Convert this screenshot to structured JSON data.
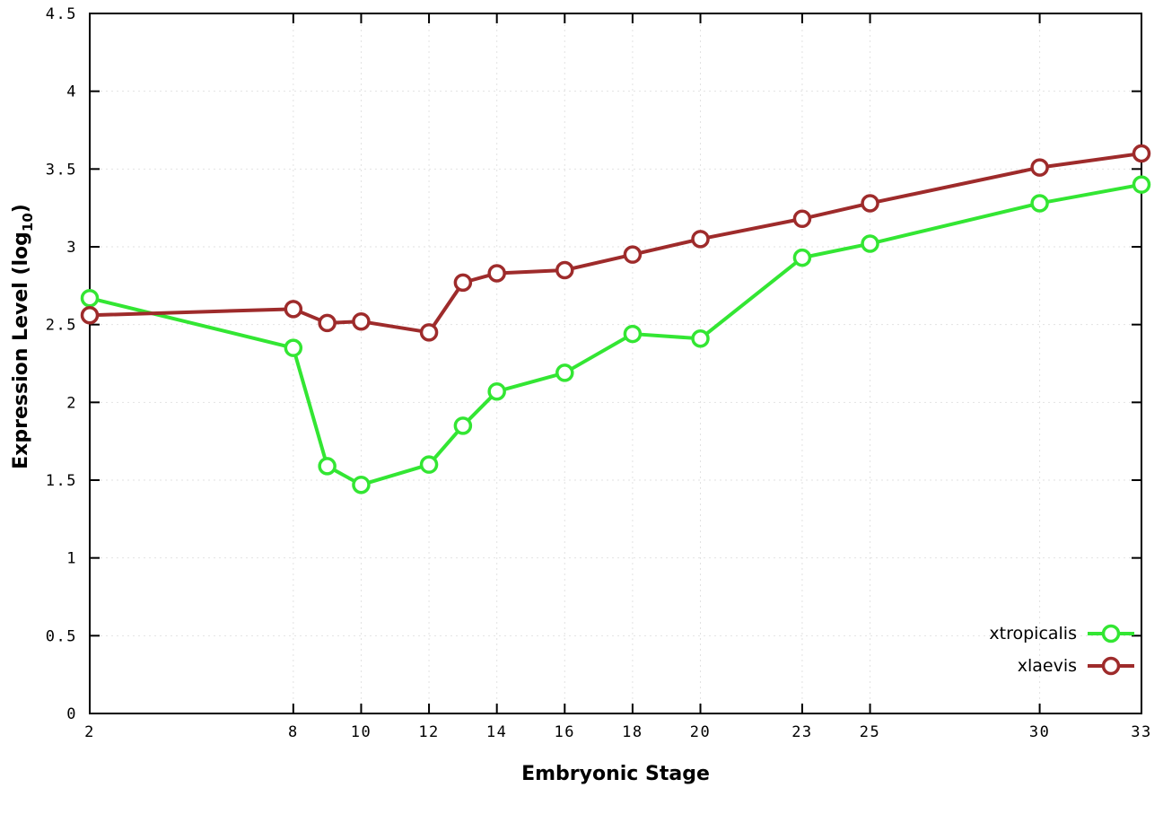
{
  "chart_data": {
    "type": "line",
    "title": "",
    "xlabel": "Embryonic Stage",
    "ylabel": "Expression Level (log10)",
    "ylabel_parts": {
      "main": "Expression Level (log",
      "sub": "10",
      "close": ")"
    },
    "x": [
      2,
      8,
      9,
      10,
      12,
      13,
      14,
      16,
      18,
      20,
      23,
      25,
      30,
      33
    ],
    "xticks": [
      2,
      8,
      10,
      12,
      14,
      16,
      18,
      20,
      23,
      25,
      30,
      33
    ],
    "yticks": [
      0,
      0.5,
      1,
      1.5,
      2,
      2.5,
      3,
      3.5,
      4,
      4.5
    ],
    "xlim": [
      2,
      33
    ],
    "ylim": [
      0,
      4.5
    ],
    "grid": true,
    "legend_position": "bottom-right",
    "series": [
      {
        "name": "xtropicalis",
        "color": "#33e633",
        "values": [
          2.67,
          2.35,
          1.59,
          1.47,
          1.6,
          1.85,
          2.07,
          2.19,
          2.44,
          2.41,
          2.93,
          3.02,
          3.28,
          3.4
        ]
      },
      {
        "name": "xlaevis",
        "color": "#9e2b2b",
        "values": [
          2.56,
          2.6,
          2.51,
          2.52,
          2.45,
          2.77,
          2.83,
          2.85,
          2.95,
          3.05,
          3.18,
          3.28,
          3.51,
          3.6
        ]
      }
    ]
  },
  "colors": {
    "axis": "#000000",
    "grid": "#e2e2e2",
    "marker_fill": "#ffffff",
    "background": "#ffffff",
    "text": "#000000"
  }
}
